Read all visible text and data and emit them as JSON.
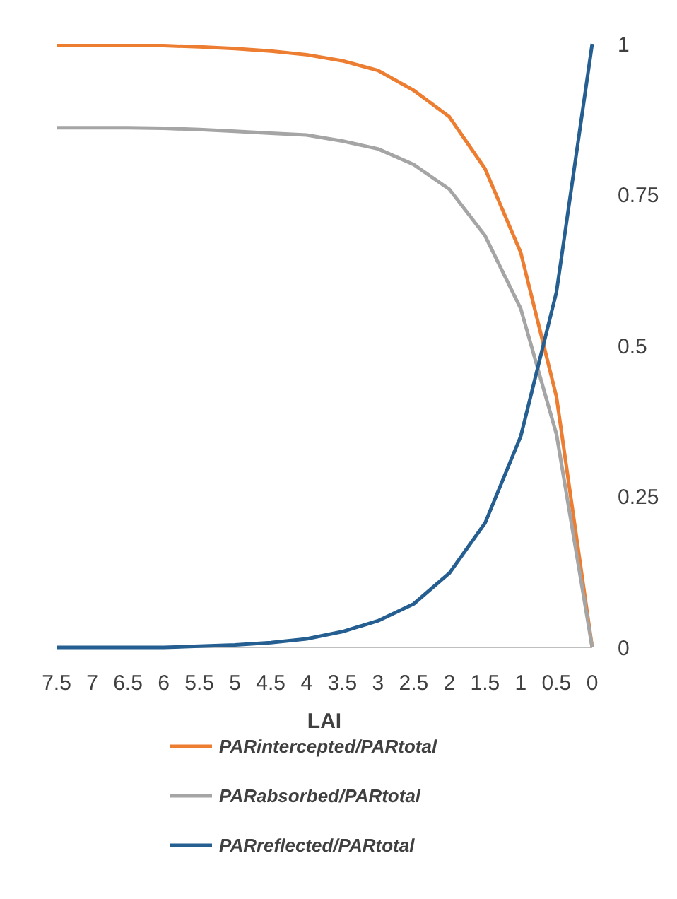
{
  "chart_data": {
    "type": "line",
    "xlabel": "LAI",
    "x": [
      7.5,
      7,
      6.5,
      6,
      5.5,
      5,
      4.5,
      4,
      3.5,
      3,
      2.5,
      2,
      1.5,
      1,
      0.5,
      0
    ],
    "xlim": [
      7.5,
      0
    ],
    "xticks": [
      7.5,
      7,
      6.5,
      6,
      5.5,
      5,
      4.5,
      4,
      3.5,
      3,
      2.5,
      2,
      1.5,
      1,
      0.5,
      0
    ],
    "ylim": [
      0,
      1
    ],
    "yticks": [
      0,
      0.25,
      0.5,
      0.75,
      1
    ],
    "legend": "bottom",
    "grid": false,
    "marker": "none",
    "line_style": "solid",
    "series": [
      {
        "name": "PARintercepted/PARtotal",
        "color": "#ed7d31",
        "values": [
          0.997,
          0.997,
          0.997,
          0.997,
          0.995,
          0.992,
          0.988,
          0.982,
          0.972,
          0.956,
          0.923,
          0.879,
          0.793,
          0.654,
          0.415,
          0
        ]
      },
      {
        "name": "PARabsorbed/PARtotal",
        "color": "#a5a5a5",
        "values": [
          0.861,
          0.861,
          0.861,
          0.86,
          0.858,
          0.855,
          0.852,
          0.849,
          0.839,
          0.826,
          0.8,
          0.759,
          0.682,
          0.561,
          0.353,
          0
        ]
      },
      {
        "name": "PARreflected/PARtotal",
        "color": "#255e91",
        "values": [
          0,
          0,
          0,
          0,
          0.002,
          0.004,
          0.008,
          0.014,
          0.026,
          0.044,
          0.072,
          0.123,
          0.206,
          0.35,
          0.589,
          1
        ]
      }
    ]
  }
}
